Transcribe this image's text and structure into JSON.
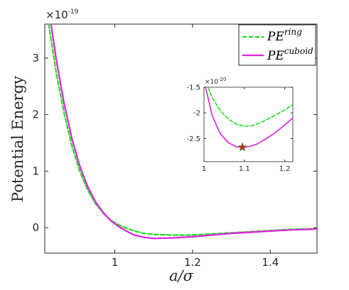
{
  "chart_data": [
    {
      "type": "line",
      "title": "",
      "xlabel": "a/σ",
      "ylabel": "Potential Energy",
      "xlim": [
        0.82,
        1.52
      ],
      "ylim": [
        -0.45,
        3.6
      ],
      "y_scale_label": "×10",
      "y_scale_exponent": "-19",
      "xticks": [
        "1",
        "1.2",
        "1.4"
      ],
      "xtick_values": [
        1,
        1.2,
        1.4
      ],
      "yticks": [
        "0",
        "1",
        "2",
        "3"
      ],
      "ytick_values": [
        0,
        1,
        2,
        3
      ],
      "legend_placement": "top-right",
      "grid": false,
      "series": [
        {
          "name": "PE",
          "name_superscript": "ring",
          "color": "#22dd22",
          "style": "dashed",
          "x": [
            0.83,
            0.85,
            0.87,
            0.89,
            0.91,
            0.93,
            0.95,
            0.97,
            0.99,
            1.01,
            1.03,
            1.05,
            1.075,
            1.1,
            1.15,
            1.2,
            1.25,
            1.3,
            1.35,
            1.4,
            1.45,
            1.5,
            1.52
          ],
          "y": [
            3.6,
            2.72,
            2.01,
            1.44,
            1.0,
            0.67,
            0.43,
            0.26,
            0.13,
            0.05,
            -0.01,
            -0.06,
            -0.1,
            -0.12,
            -0.13,
            -0.13,
            -0.11,
            -0.09,
            -0.07,
            -0.05,
            -0.03,
            -0.02,
            -0.02
          ]
        },
        {
          "name": "PE",
          "name_superscript": "cuboid",
          "color": "#e020e0",
          "style": "solid",
          "x": [
            0.836,
            0.85,
            0.87,
            0.89,
            0.91,
            0.93,
            0.95,
            0.97,
            0.99,
            1.01,
            1.03,
            1.05,
            1.075,
            1.1,
            1.15,
            1.2,
            1.25,
            1.3,
            1.35,
            1.4,
            1.45,
            1.5,
            1.52
          ],
          "y": [
            3.6,
            2.95,
            2.18,
            1.57,
            1.09,
            0.73,
            0.46,
            0.27,
            0.12,
            0.02,
            -0.06,
            -0.13,
            -0.17,
            -0.19,
            -0.18,
            -0.16,
            -0.13,
            -0.1,
            -0.08,
            -0.06,
            -0.04,
            -0.03,
            -0.02
          ]
        }
      ]
    },
    {
      "type": "line",
      "title": "",
      "xlabel": "",
      "ylabel": "",
      "xlim": [
        1.0,
        1.22
      ],
      "ylim": [
        -2.95,
        -1.5
      ],
      "y_scale_label": "×10",
      "y_scale_exponent": "-20",
      "xticks": [
        "1",
        "1.1",
        "1.2"
      ],
      "xtick_values": [
        1.0,
        1.1,
        1.2
      ],
      "yticks": [
        "-1.5",
        "-2",
        "-2.5"
      ],
      "ytick_values": [
        -1.5,
        -2.0,
        -2.5
      ],
      "grid": false,
      "series": [
        {
          "name": "PE",
          "name_superscript": "ring",
          "color": "#22dd22",
          "style": "dashed",
          "x": [
            1.01,
            1.02,
            1.04,
            1.06,
            1.08,
            1.1,
            1.12,
            1.14,
            1.16,
            1.18,
            1.2,
            1.22
          ],
          "y": [
            -1.5,
            -1.7,
            -1.95,
            -2.12,
            -2.22,
            -2.26,
            -2.25,
            -2.19,
            -2.11,
            -2.03,
            -1.94,
            -1.84
          ]
        },
        {
          "name": "PE",
          "name_superscript": "cuboid",
          "color": "#e020e0",
          "style": "solid",
          "x": [
            1.004,
            1.02,
            1.04,
            1.06,
            1.08,
            1.095,
            1.11,
            1.13,
            1.15,
            1.17,
            1.19,
            1.22
          ],
          "y": [
            -1.5,
            -2.05,
            -2.4,
            -2.58,
            -2.66,
            -2.67,
            -2.66,
            -2.61,
            -2.52,
            -2.42,
            -2.3,
            -2.1
          ]
        }
      ],
      "marker": {
        "x": 1.095,
        "y": -2.67,
        "shape": "star",
        "color": "#e02020"
      }
    }
  ]
}
